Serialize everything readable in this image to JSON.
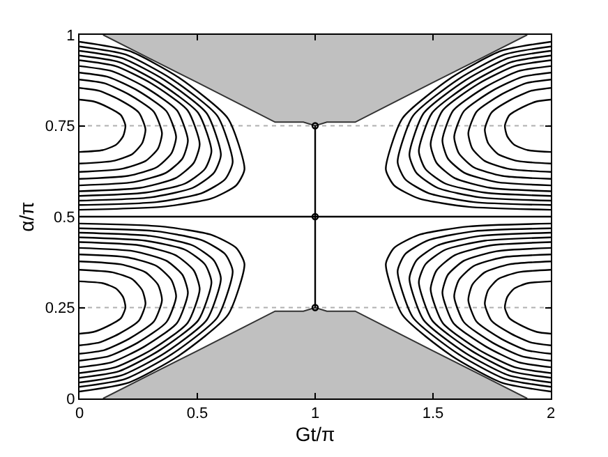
{
  "chart_data": {
    "type": "line",
    "xlabel": "Gt/π",
    "ylabel": "α/π",
    "xlim": [
      0,
      2
    ],
    "ylim": [
      0,
      1
    ],
    "xticks": [
      0,
      0.5,
      1,
      1.5,
      2
    ],
    "yticks": [
      0,
      0.25,
      0.5,
      0.75,
      1
    ],
    "ref_lines": [
      {
        "axis": "y",
        "value": 0.25,
        "color": "#b0b0b0",
        "line_style": "dotted"
      },
      {
        "axis": "y",
        "value": 0.75,
        "color": "#b0b0b0",
        "line_style": "dotted"
      }
    ],
    "series": [
      {
        "type": "area",
        "color": "#c0c0c0",
        "x": [
          0.1,
          0.3,
          0.5,
          0.7,
          0.83,
          0.95,
          1,
          1.05,
          1.17,
          1.3,
          1.5,
          1.7,
          1.9
        ],
        "values": [
          0,
          0.066,
          0.131,
          0.197,
          0.24,
          0.24,
          0.25,
          0.24,
          0.24,
          0.197,
          0.131,
          0.066,
          0
        ]
      },
      {
        "type": "area",
        "color": "#c0c0c0",
        "x": [
          0.1,
          0.3,
          0.5,
          0.7,
          0.83,
          0.95,
          1,
          1.05,
          1.17,
          1.3,
          1.5,
          1.7,
          1.9
        ],
        "values": [
          1,
          0.934,
          0.869,
          0.803,
          0.76,
          0.76,
          0.75,
          0.76,
          0.76,
          0.803,
          0.869,
          0.934,
          1
        ]
      },
      {
        "color": "#000000",
        "x": [
          0,
          0.098,
          0.156,
          0.185,
          0.195,
          0.176,
          0.117,
          0.059,
          0
        ],
        "values": [
          0.678,
          0.683,
          0.698,
          0.721,
          0.75,
          0.779,
          0.802,
          0.817,
          0.822
        ]
      },
      {
        "color": "#000000",
        "x": [
          0,
          0.14,
          0.224,
          0.266,
          0.28,
          0.252,
          0.168,
          0.084,
          0
        ],
        "values": [
          0.646,
          0.653,
          0.672,
          0.702,
          0.74,
          0.786,
          0.822,
          0.846,
          0.854
        ]
      },
      {
        "color": "#000000",
        "x": [
          0,
          0.175,
          0.28,
          0.333,
          0.35,
          0.315,
          0.21,
          0.105,
          0
        ],
        "values": [
          0.623,
          0.631,
          0.653,
          0.687,
          0.73,
          0.789,
          0.836,
          0.867,
          0.877
        ]
      },
      {
        "color": "#000000",
        "x": [
          0,
          0.205,
          0.328,
          0.39,
          0.41,
          0.369,
          0.246,
          0.123,
          0
        ],
        "values": [
          0.604,
          0.612,
          0.636,
          0.674,
          0.72,
          0.79,
          0.847,
          0.884,
          0.896
        ]
      },
      {
        "color": "#000000",
        "x": [
          0,
          0.23,
          0.368,
          0.437,
          0.46,
          0.414,
          0.276,
          0.138,
          0
        ],
        "values": [
          0.586,
          0.595,
          0.621,
          0.66,
          0.71,
          0.792,
          0.857,
          0.9,
          0.914
        ]
      },
      {
        "color": "#000000",
        "x": [
          0,
          0.255,
          0.408,
          0.485,
          0.51,
          0.459,
          0.306,
          0.153,
          0
        ],
        "values": [
          0.57,
          0.579,
          0.606,
          0.648,
          0.7,
          0.792,
          0.866,
          0.914,
          0.93
        ]
      },
      {
        "color": "#000000",
        "x": [
          0,
          0.28,
          0.448,
          0.532,
          0.56,
          0.504,
          0.336,
          0.168,
          0
        ],
        "values": [
          0.557,
          0.566,
          0.591,
          0.631,
          0.68,
          0.785,
          0.869,
          0.925,
          0.943
        ]
      },
      {
        "color": "#000000",
        "x": [
          0,
          0.3,
          0.48,
          0.57,
          0.6,
          0.54,
          0.36,
          0.18,
          0
        ],
        "values": [
          0.544,
          0.553,
          0.579,
          0.62,
          0.67,
          0.784,
          0.876,
          0.936,
          0.956
        ]
      },
      {
        "color": "#000000",
        "x": [
          0,
          0.325,
          0.52,
          0.618,
          0.65,
          0.585,
          0.39,
          0.195,
          0
        ],
        "values": [
          0.532,
          0.54,
          0.565,
          0.603,
          0.65,
          0.777,
          0.879,
          0.946,
          0.968
        ]
      },
      {
        "color": "#000000",
        "x": [
          0,
          0.35,
          0.56,
          0.665,
          0.7,
          0.63,
          0.42,
          0.21,
          0
        ],
        "values": [
          0.519,
          0.527,
          0.55,
          0.586,
          0.63,
          0.77,
          0.883,
          0.956,
          0.981
        ]
      },
      {
        "color": "#000000",
        "x": [
          0,
          0.098,
          0.156,
          0.185,
          0.195,
          0.176,
          0.117,
          0.059,
          0
        ],
        "values": [
          0.322,
          0.317,
          0.302,
          0.279,
          0.25,
          0.221,
          0.198,
          0.183,
          0.178
        ]
      },
      {
        "color": "#000000",
        "x": [
          0,
          0.14,
          0.224,
          0.266,
          0.28,
          0.252,
          0.168,
          0.084,
          0
        ],
        "values": [
          0.354,
          0.347,
          0.328,
          0.298,
          0.26,
          0.214,
          0.178,
          0.154,
          0.146
        ]
      },
      {
        "color": "#000000",
        "x": [
          0,
          0.175,
          0.28,
          0.333,
          0.35,
          0.315,
          0.21,
          0.105,
          0
        ],
        "values": [
          0.377,
          0.369,
          0.347,
          0.313,
          0.27,
          0.211,
          0.164,
          0.133,
          0.123
        ]
      },
      {
        "color": "#000000",
        "x": [
          0,
          0.205,
          0.328,
          0.39,
          0.41,
          0.369,
          0.246,
          0.123,
          0
        ],
        "values": [
          0.396,
          0.388,
          0.364,
          0.326,
          0.28,
          0.21,
          0.153,
          0.116,
          0.104
        ]
      },
      {
        "color": "#000000",
        "x": [
          0,
          0.23,
          0.368,
          0.437,
          0.46,
          0.414,
          0.276,
          0.138,
          0
        ],
        "values": [
          0.414,
          0.405,
          0.379,
          0.34,
          0.29,
          0.208,
          0.143,
          0.1,
          0.086
        ]
      },
      {
        "color": "#000000",
        "x": [
          0,
          0.255,
          0.408,
          0.485,
          0.51,
          0.459,
          0.306,
          0.153,
          0
        ],
        "values": [
          0.43,
          0.421,
          0.394,
          0.352,
          0.3,
          0.208,
          0.134,
          0.086,
          0.07
        ]
      },
      {
        "color": "#000000",
        "x": [
          0,
          0.28,
          0.448,
          0.532,
          0.56,
          0.504,
          0.336,
          0.168,
          0
        ],
        "values": [
          0.443,
          0.434,
          0.409,
          0.369,
          0.32,
          0.215,
          0.131,
          0.075,
          0.057
        ]
      },
      {
        "color": "#000000",
        "x": [
          0,
          0.3,
          0.48,
          0.57,
          0.6,
          0.54,
          0.36,
          0.18,
          0
        ],
        "values": [
          0.456,
          0.447,
          0.421,
          0.38,
          0.33,
          0.216,
          0.124,
          0.064,
          0.044
        ]
      },
      {
        "color": "#000000",
        "x": [
          0,
          0.325,
          0.52,
          0.618,
          0.65,
          0.585,
          0.39,
          0.195,
          0
        ],
        "values": [
          0.468,
          0.46,
          0.435,
          0.397,
          0.35,
          0.223,
          0.121,
          0.054,
          0.032
        ]
      },
      {
        "color": "#000000",
        "x": [
          0,
          0.35,
          0.56,
          0.665,
          0.7,
          0.63,
          0.42,
          0.21,
          0
        ],
        "values": [
          0.481,
          0.473,
          0.45,
          0.414,
          0.37,
          0.23,
          0.117,
          0.044,
          0.019
        ]
      },
      {
        "color": "#000000",
        "x": [
          2,
          1.902,
          1.844,
          1.815,
          1.805,
          1.824,
          1.883,
          1.941,
          2
        ],
        "values": [
          0.678,
          0.683,
          0.698,
          0.721,
          0.75,
          0.779,
          0.802,
          0.817,
          0.822
        ]
      },
      {
        "color": "#000000",
        "x": [
          2,
          1.86,
          1.776,
          1.734,
          1.72,
          1.748,
          1.832,
          1.916,
          2
        ],
        "values": [
          0.646,
          0.653,
          0.672,
          0.702,
          0.74,
          0.786,
          0.822,
          0.846,
          0.854
        ]
      },
      {
        "color": "#000000",
        "x": [
          2,
          1.825,
          1.72,
          1.667,
          1.65,
          1.685,
          1.79,
          1.895,
          2
        ],
        "values": [
          0.623,
          0.631,
          0.653,
          0.687,
          0.73,
          0.789,
          0.836,
          0.867,
          0.877
        ]
      },
      {
        "color": "#000000",
        "x": [
          2,
          1.795,
          1.672,
          1.61,
          1.59,
          1.631,
          1.754,
          1.877,
          2
        ],
        "values": [
          0.604,
          0.612,
          0.636,
          0.674,
          0.72,
          0.79,
          0.847,
          0.884,
          0.896
        ]
      },
      {
        "color": "#000000",
        "x": [
          2,
          1.77,
          1.632,
          1.563,
          1.54,
          1.586,
          1.724,
          1.862,
          2
        ],
        "values": [
          0.586,
          0.595,
          0.621,
          0.66,
          0.71,
          0.792,
          0.857,
          0.9,
          0.914
        ]
      },
      {
        "color": "#000000",
        "x": [
          2,
          1.745,
          1.592,
          1.515,
          1.49,
          1.541,
          1.694,
          1.847,
          2
        ],
        "values": [
          0.57,
          0.579,
          0.606,
          0.648,
          0.7,
          0.792,
          0.866,
          0.914,
          0.93
        ]
      },
      {
        "color": "#000000",
        "x": [
          2,
          1.72,
          1.552,
          1.468,
          1.44,
          1.496,
          1.664,
          1.832,
          2
        ],
        "values": [
          0.557,
          0.566,
          0.591,
          0.631,
          0.68,
          0.785,
          0.869,
          0.925,
          0.943
        ]
      },
      {
        "color": "#000000",
        "x": [
          2,
          1.7,
          1.52,
          1.43,
          1.4,
          1.46,
          1.64,
          1.82,
          2
        ],
        "values": [
          0.544,
          0.553,
          0.579,
          0.62,
          0.67,
          0.784,
          0.876,
          0.936,
          0.956
        ]
      },
      {
        "color": "#000000",
        "x": [
          2,
          1.675,
          1.48,
          1.382,
          1.35,
          1.415,
          1.61,
          1.805,
          2
        ],
        "values": [
          0.532,
          0.54,
          0.565,
          0.603,
          0.65,
          0.777,
          0.879,
          0.946,
          0.968
        ]
      },
      {
        "color": "#000000",
        "x": [
          2,
          1.65,
          1.44,
          1.335,
          1.3,
          1.37,
          1.58,
          1.79,
          2
        ],
        "values": [
          0.519,
          0.527,
          0.55,
          0.586,
          0.63,
          0.77,
          0.883,
          0.956,
          0.981
        ]
      },
      {
        "color": "#000000",
        "x": [
          2,
          1.902,
          1.844,
          1.815,
          1.805,
          1.824,
          1.883,
          1.941,
          2
        ],
        "values": [
          0.322,
          0.317,
          0.302,
          0.279,
          0.25,
          0.221,
          0.198,
          0.183,
          0.178
        ]
      },
      {
        "color": "#000000",
        "x": [
          2,
          1.86,
          1.776,
          1.734,
          1.72,
          1.748,
          1.832,
          1.916,
          2
        ],
        "values": [
          0.354,
          0.347,
          0.328,
          0.298,
          0.26,
          0.214,
          0.178,
          0.154,
          0.146
        ]
      },
      {
        "color": "#000000",
        "x": [
          2,
          1.825,
          1.72,
          1.667,
          1.65,
          1.685,
          1.79,
          1.895,
          2
        ],
        "values": [
          0.377,
          0.369,
          0.347,
          0.313,
          0.27,
          0.211,
          0.164,
          0.133,
          0.123
        ]
      },
      {
        "color": "#000000",
        "x": [
          2,
          1.795,
          1.672,
          1.61,
          1.59,
          1.631,
          1.754,
          1.877,
          2
        ],
        "values": [
          0.396,
          0.388,
          0.364,
          0.326,
          0.28,
          0.21,
          0.153,
          0.116,
          0.104
        ]
      },
      {
        "color": "#000000",
        "x": [
          2,
          1.77,
          1.632,
          1.563,
          1.54,
          1.586,
          1.724,
          1.862,
          2
        ],
        "values": [
          0.414,
          0.405,
          0.379,
          0.34,
          0.29,
          0.208,
          0.143,
          0.1,
          0.086
        ]
      },
      {
        "color": "#000000",
        "x": [
          2,
          1.745,
          1.592,
          1.515,
          1.49,
          1.541,
          1.694,
          1.847,
          2
        ],
        "values": [
          0.43,
          0.421,
          0.394,
          0.352,
          0.3,
          0.208,
          0.134,
          0.086,
          0.07
        ]
      },
      {
        "color": "#000000",
        "x": [
          2,
          1.72,
          1.552,
          1.468,
          1.44,
          1.496,
          1.664,
          1.832,
          2
        ],
        "values": [
          0.443,
          0.434,
          0.409,
          0.369,
          0.32,
          0.215,
          0.131,
          0.075,
          0.057
        ]
      },
      {
        "color": "#000000",
        "x": [
          2,
          1.7,
          1.52,
          1.43,
          1.4,
          1.46,
          1.64,
          1.82,
          2
        ],
        "values": [
          0.456,
          0.447,
          0.421,
          0.38,
          0.33,
          0.216,
          0.124,
          0.064,
          0.044
        ]
      },
      {
        "color": "#000000",
        "x": [
          2,
          1.675,
          1.48,
          1.382,
          1.35,
          1.415,
          1.61,
          1.805,
          2
        ],
        "values": [
          0.468,
          0.46,
          0.435,
          0.397,
          0.35,
          0.223,
          0.121,
          0.054,
          0.032
        ]
      },
      {
        "color": "#000000",
        "x": [
          2,
          1.65,
          1.44,
          1.335,
          1.3,
          1.37,
          1.58,
          1.79,
          2
        ],
        "values": [
          0.481,
          0.473,
          0.45,
          0.414,
          0.37,
          0.23,
          0.117,
          0.044,
          0.019
        ]
      },
      {
        "color": "#000000",
        "x": [
          0,
          2
        ],
        "values": [
          0.5,
          0.5
        ]
      },
      {
        "color": "#000000",
        "x": [
          1,
          1
        ],
        "values": [
          0.25,
          0.75
        ]
      },
      {
        "type": "scatter",
        "color": "#000000",
        "marker": "circle",
        "x": [
          1,
          1,
          1
        ],
        "values": [
          0.25,
          0.5,
          0.75
        ]
      }
    ]
  }
}
